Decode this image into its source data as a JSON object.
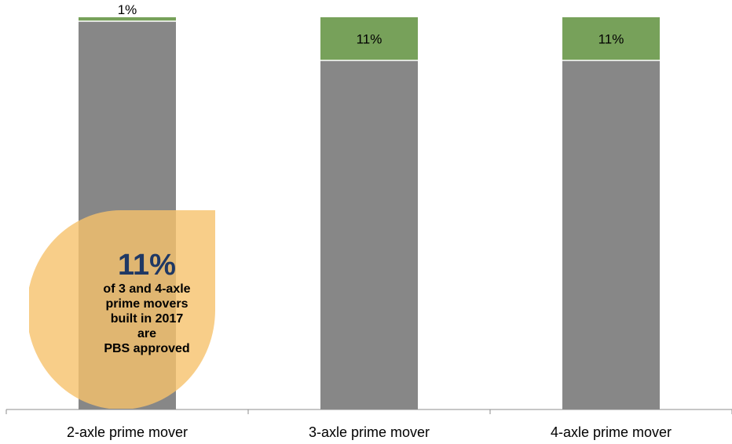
{
  "chart_data": {
    "type": "bar",
    "stacked": true,
    "normalized": true,
    "categories": [
      "2-axle prime mover",
      "3-axle prime mover",
      "4-axle prime mover"
    ],
    "series": [
      {
        "values": [
          99,
          89,
          89
        ],
        "color": "#878787"
      },
      {
        "values": [
          1,
          11,
          11
        ],
        "color": "#77a15a"
      }
    ],
    "data_labels": [
      "1%",
      "11%",
      "11%"
    ],
    "ylim": [
      0,
      100
    ],
    "grid": false,
    "legend": "none"
  },
  "callout": {
    "value": "11%",
    "lines": [
      "of 3 and 4-axle",
      "prime movers",
      "built in 2017",
      "are",
      "PBS approved"
    ],
    "color": "#f6c26b"
  }
}
